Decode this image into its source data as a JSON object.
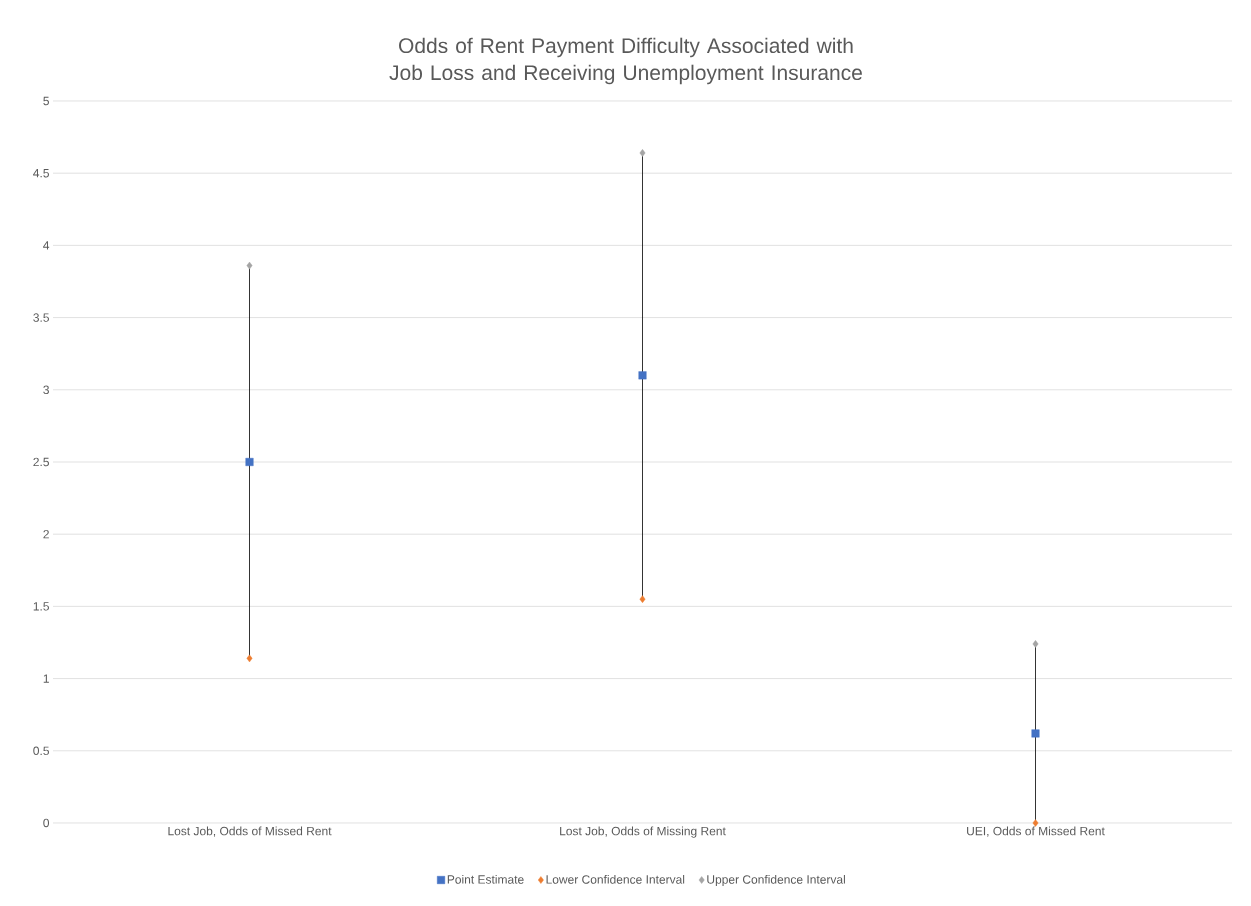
{
  "chart_data": {
    "type": "scatter",
    "title": "Odds of Rent Payment Difficulty Associated with Job Loss and Receiving Unemployment Insurance",
    "categories": [
      "Lost Job, Odds of Missed Rent",
      "Lost Job, Odds of Missing Rent",
      "UEI, Odds of Missed Rent"
    ],
    "series": [
      {
        "type": "line",
        "color": "#000000",
        "marker": "none",
        "x": [
          "Lost Job, Odds of Missed Rent",
          "Lost Job, Odds of Missed Rent"
        ],
        "values": [
          1.14,
          3.86
        ]
      },
      {
        "type": "line",
        "color": "#000000",
        "marker": "none",
        "x": [
          "Lost Job, Odds of Missing Rent",
          "Lost Job, Odds of Missing Rent"
        ],
        "values": [
          1.55,
          4.64
        ]
      },
      {
        "type": "line",
        "color": "#000000",
        "marker": "none",
        "x": [
          "UEI, Odds of Missed Rent",
          "UEI, Odds of Missed Rent"
        ],
        "values": [
          0.0,
          1.24
        ]
      },
      {
        "name": "Point Estimate",
        "color": "#4472c4",
        "marker": "square",
        "values": [
          2.5,
          3.1,
          0.62
        ]
      },
      {
        "name": "Lower Confidence Interval",
        "color": "#ed7d31",
        "marker": "diamond",
        "values": [
          1.14,
          1.55,
          0.0
        ]
      },
      {
        "name": "Upper Confidence Interval",
        "color": "#a5a5a5",
        "marker": "diamond",
        "values": [
          3.86,
          4.64,
          1.24
        ]
      }
    ],
    "ylim": [
      0,
      5
    ],
    "yticks": [
      0,
      0.5,
      1,
      1.5,
      2,
      2.5,
      3,
      3.5,
      4,
      4.5,
      5
    ],
    "grid": "y",
    "legend": "bottom"
  }
}
